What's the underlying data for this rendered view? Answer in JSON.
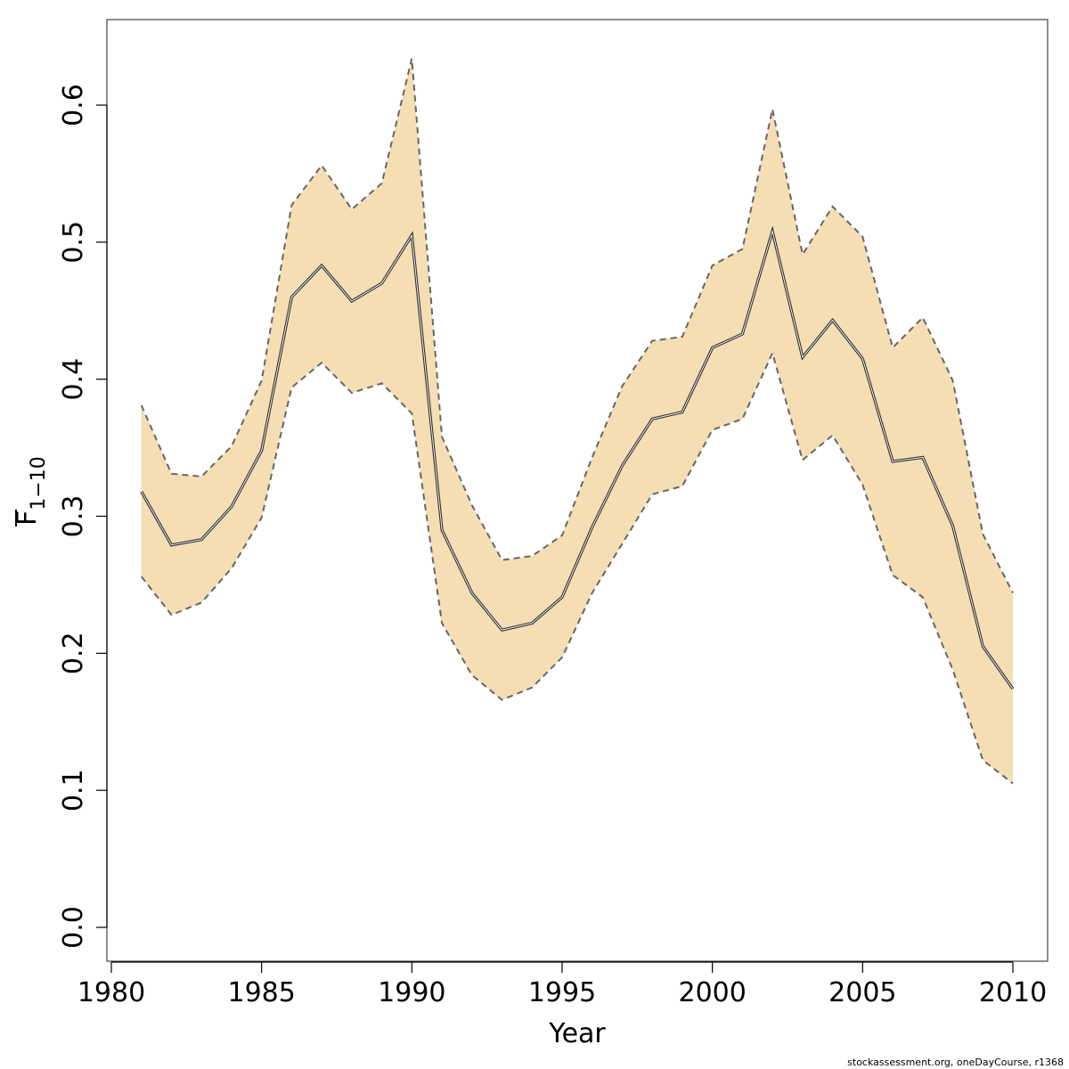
{
  "chart_data": {
    "type": "line",
    "xlabel": "Year",
    "ylabel": {
      "main": "F",
      "subscript": "1−10"
    },
    "xlim": [
      1980,
      2010
    ],
    "ylim": [
      0.0,
      0.6
    ],
    "x_ticks": [
      1980,
      1985,
      1990,
      1995,
      2000,
      2005,
      2010
    ],
    "y_ticks": [
      "0.0",
      "0.1",
      "0.2",
      "0.3",
      "0.4",
      "0.5",
      "0.6"
    ],
    "grid": false,
    "band_color": "#F5DEB3",
    "line_color": "#333333",
    "bound_color": "#666666",
    "x": [
      1981,
      1982,
      1983,
      1984,
      1985,
      1986,
      1987,
      1988,
      1989,
      1990,
      1991,
      1992,
      1993,
      1994,
      1995,
      1996,
      1997,
      1998,
      1999,
      2000,
      2001,
      2002,
      2003,
      2004,
      2005,
      2006,
      2007,
      2008,
      2009,
      2010
    ],
    "series": [
      {
        "values": [
          0.318,
          0.279,
          0.283,
          0.307,
          0.348,
          0.46,
          0.483,
          0.457,
          0.47,
          0.505,
          0.29,
          0.244,
          0.217,
          0.222,
          0.241,
          0.292,
          0.337,
          0.371,
          0.376,
          0.423,
          0.433,
          0.508,
          0.416,
          0.443,
          0.415,
          0.34,
          0.343,
          0.293,
          0.205,
          0.174
        ]
      }
    ],
    "lower": [
      0.256,
      0.228,
      0.237,
      0.262,
      0.299,
      0.394,
      0.412,
      0.39,
      0.397,
      0.375,
      0.222,
      0.184,
      0.166,
      0.175,
      0.197,
      0.244,
      0.28,
      0.316,
      0.322,
      0.363,
      0.371,
      0.419,
      0.341,
      0.359,
      0.323,
      0.257,
      0.241,
      0.188,
      0.122,
      0.105
    ],
    "upper": [
      0.381,
      0.331,
      0.329,
      0.351,
      0.399,
      0.527,
      0.556,
      0.524,
      0.543,
      0.634,
      0.358,
      0.308,
      0.268,
      0.271,
      0.286,
      0.343,
      0.395,
      0.428,
      0.431,
      0.483,
      0.495,
      0.597,
      0.491,
      0.526,
      0.504,
      0.423,
      0.445,
      0.399,
      0.287,
      0.244
    ]
  },
  "footer": "stockassessment.org, oneDayCourse, r1368"
}
